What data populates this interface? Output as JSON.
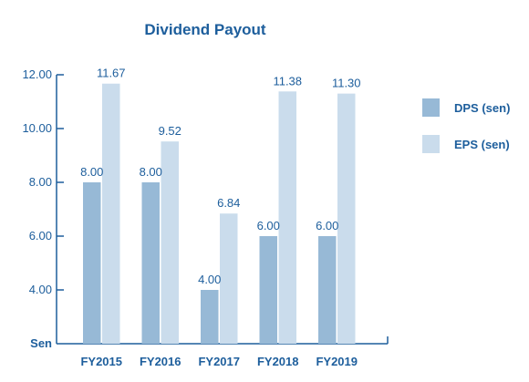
{
  "chart_data": {
    "type": "bar",
    "title": "Dividend Payout",
    "ylabel": "Sen",
    "xlabel": "",
    "categories": [
      "FY2015",
      "FY2016",
      "FY2017",
      "FY2018",
      "FY2019"
    ],
    "series": [
      {
        "name": "DPS (sen)",
        "values": [
          8.0,
          8.0,
          4.0,
          6.0,
          6.0
        ],
        "labels": [
          "8.00",
          "8.00",
          "4.00",
          "6.00",
          "6.00"
        ],
        "color": "#97b9d6"
      },
      {
        "name": "EPS (sen)",
        "values": [
          11.67,
          9.52,
          6.84,
          11.38,
          11.3
        ],
        "labels": [
          "11.67",
          "9.52",
          "6.84",
          "11.38",
          "11.30"
        ],
        "color": "#cadcec"
      }
    ],
    "yticks": [
      "12.00",
      "10.00",
      "8.00",
      "6.00",
      "4.00"
    ],
    "ylim": [
      2.0,
      12.0
    ],
    "grid": false,
    "legend_position": "right",
    "colors": {
      "text": "#1d5e9c",
      "axis": "#1d5e9c"
    }
  }
}
